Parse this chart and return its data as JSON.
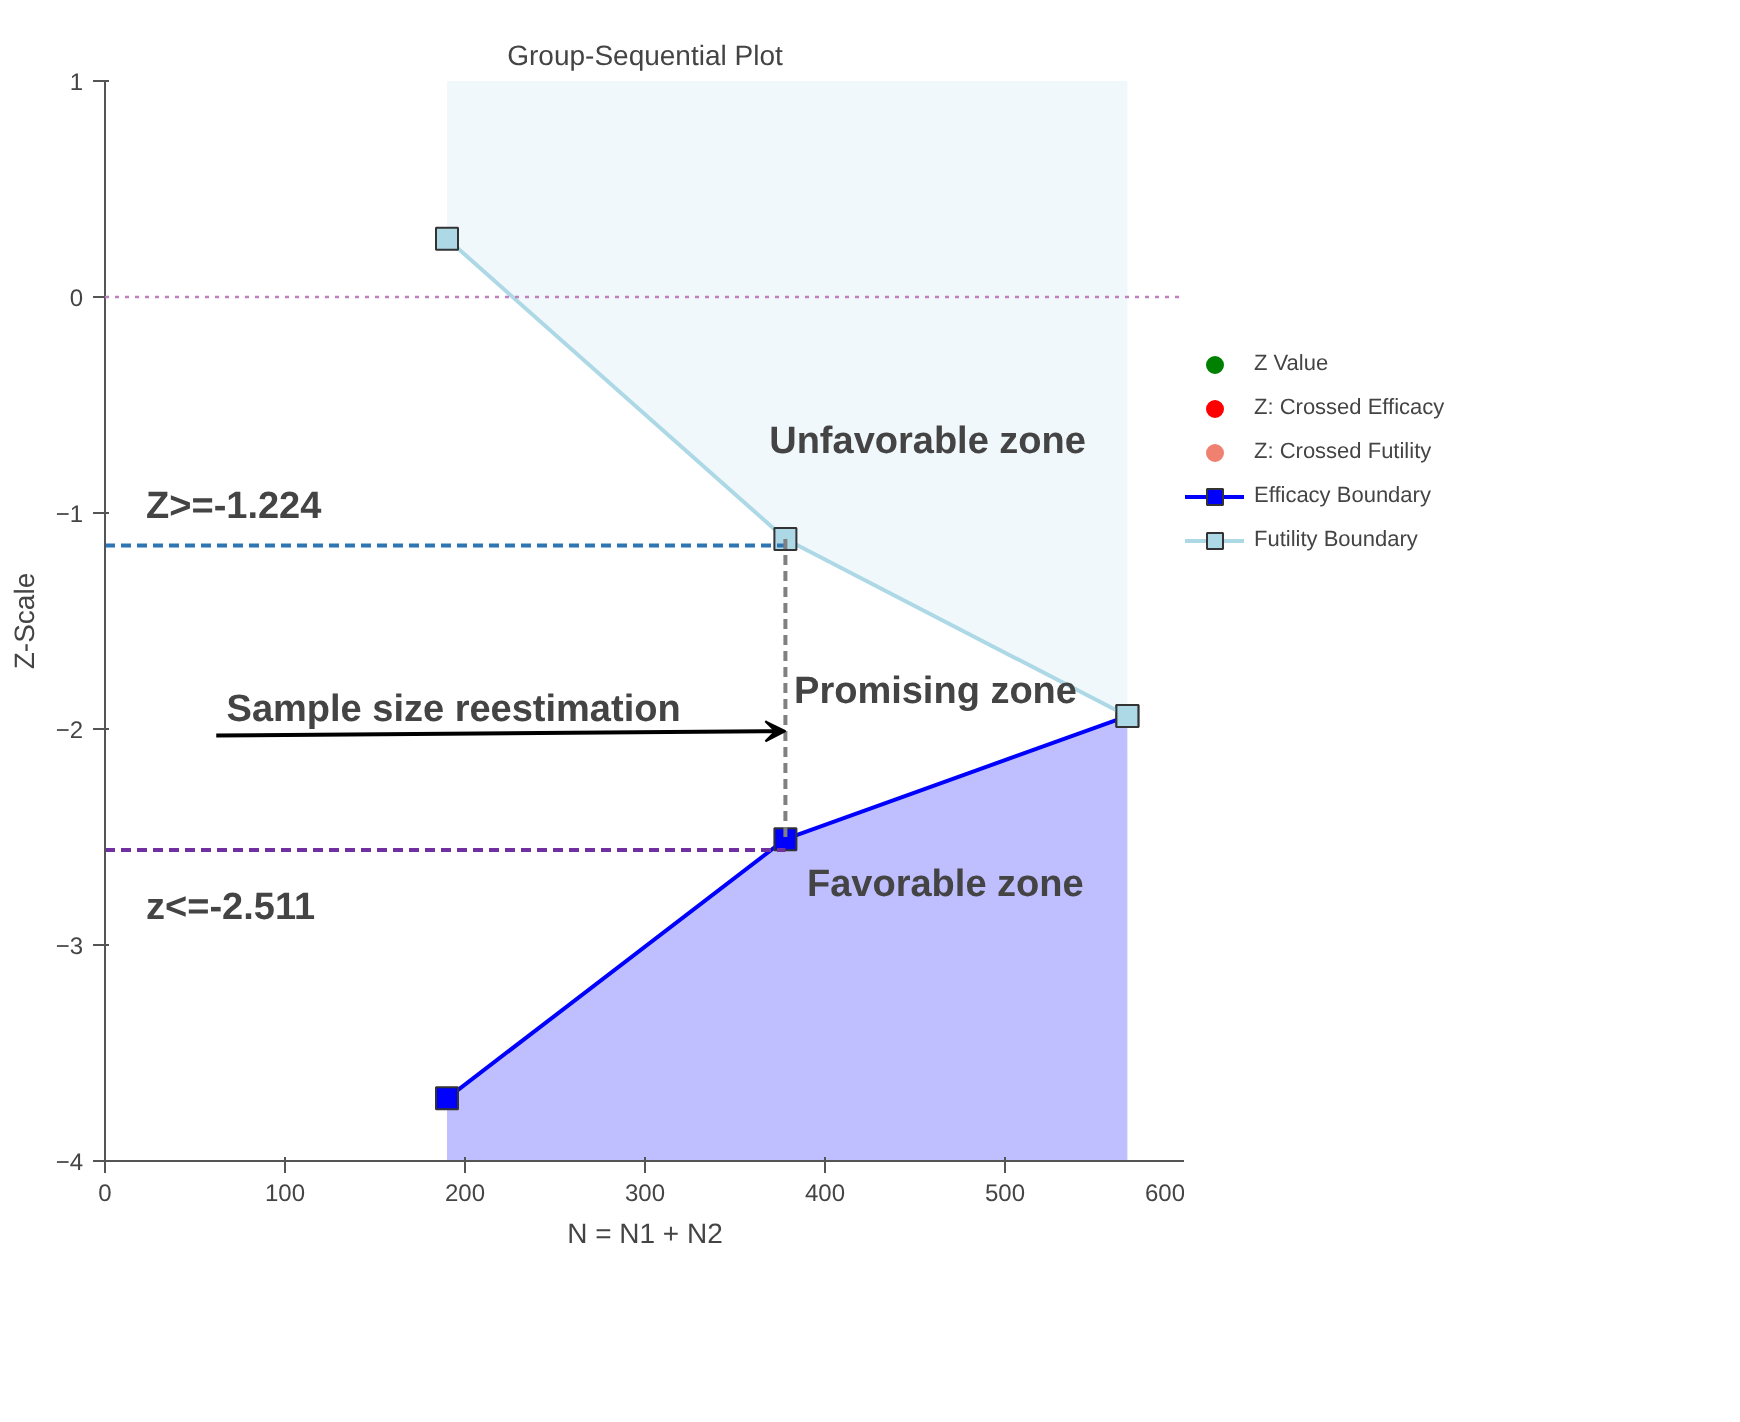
{
  "chart_data": {
    "type": "line",
    "title": "Group-Sequential Plot",
    "xlabel": "N = N1 + N2",
    "ylabel": "Z-Scale",
    "xlim": [
      0,
      600
    ],
    "ylim": [
      -4,
      1
    ],
    "xticks": [
      0,
      100,
      200,
      300,
      400,
      500,
      600
    ],
    "yticks": [
      -4,
      -3,
      -2,
      -1,
      0,
      1
    ],
    "grid": false,
    "legend": "right",
    "marker": "square",
    "series": [
      {
        "name": "Z Value",
        "type": "scatter",
        "marker": "circle",
        "color": "#008000",
        "x": [
          null
        ],
        "values": [
          null
        ]
      },
      {
        "name": "Z: Crossed Efficacy",
        "type": "scatter",
        "marker": "circle",
        "color": "#ff0000",
        "x": [
          null
        ],
        "values": [
          null
        ]
      },
      {
        "name": "Z: Crossed Futility",
        "type": "scatter",
        "marker": "circle",
        "color": "#f08070",
        "x": [
          null
        ],
        "values": [
          null
        ]
      },
      {
        "name": "Efficacy Boundary",
        "color": "#0000ff",
        "x": [
          190,
          378,
          568
        ],
        "values": [
          -3.71,
          -2.51,
          -1.94
        ],
        "lower": [
          -4,
          -4,
          -4
        ],
        "upper": [
          -3.71,
          -2.51,
          -1.94
        ]
      },
      {
        "name": "Futility Boundary",
        "color": "#add8e6",
        "x": [
          190,
          378,
          568
        ],
        "values": [
          0.27,
          -1.12,
          -1.94
        ],
        "lower": [
          0.27,
          -1.12,
          -1.94
        ],
        "upper": [
          1,
          1,
          1
        ]
      },
      {
        "marker": "none",
        "line_style": "dashed",
        "color": "#2e75b6",
        "x": [
          0,
          378
        ],
        "values": [
          -1.15,
          -1.15
        ]
      },
      {
        "marker": "none",
        "line_style": "dashed",
        "color": "#7030a0",
        "x": [
          0,
          378
        ],
        "values": [
          -2.56,
          -2.56
        ]
      },
      {
        "marker": "none",
        "line_style": "dashed",
        "color": "#808080",
        "x": [
          378,
          378
        ],
        "values": [
          -1.12,
          -2.51
        ]
      }
    ],
    "ref_lines": [
      {
        "axis": "y",
        "value": 0,
        "color": "#c080c0",
        "line_style": "dotted"
      }
    ],
    "annotations": [
      "Unfavorable zone",
      "Promising zone",
      "Favorable zone",
      "Z>=-1.224",
      "z<=-2.511",
      {
        "text": "Sample size reestimation",
        "x": 378,
        "y": -2.01
      }
    ]
  }
}
